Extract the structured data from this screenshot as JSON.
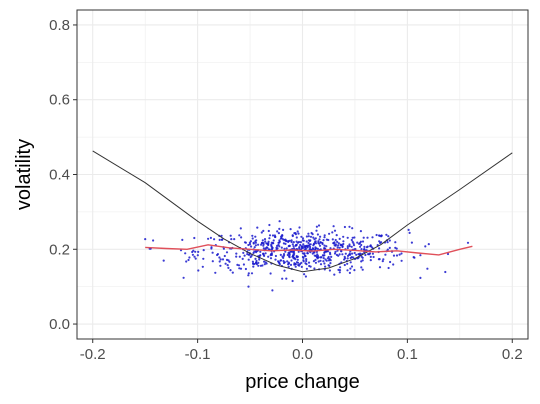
{
  "chart_data": {
    "type": "scatter",
    "title": "",
    "xlabel": "price change",
    "ylabel": "volatility",
    "xlim": [
      -0.215,
      0.215
    ],
    "ylim": [
      -0.04,
      0.84
    ],
    "x_ticks": [
      -0.2,
      -0.1,
      0.0,
      0.1,
      0.2
    ],
    "x_tick_labels": [
      "-0.2",
      "-0.1",
      "0.0",
      "0.1",
      "0.2"
    ],
    "y_ticks": [
      0.0,
      0.2,
      0.4,
      0.6,
      0.8
    ],
    "y_tick_labels": [
      "0.0",
      "0.2",
      "0.4",
      "0.6",
      "0.8"
    ],
    "grid": true,
    "background": "#ffffff",
    "panel_border_color": "#333333",
    "gridline_color": "#ebebeb",
    "series": [
      {
        "kind": "line",
        "color": "#333333",
        "x": [
          -0.2,
          -0.15,
          -0.1,
          -0.075,
          -0.05,
          -0.025,
          0.0,
          0.025,
          0.05,
          0.075,
          0.1,
          0.15,
          0.2
        ],
        "y": [
          0.463,
          0.378,
          0.275,
          0.228,
          0.189,
          0.158,
          0.14,
          0.15,
          0.175,
          0.213,
          0.265,
          0.36,
          0.458
        ]
      },
      {
        "kind": "line",
        "color": "#e0505a",
        "x": [
          -0.15,
          -0.13,
          -0.11,
          -0.09,
          -0.07,
          -0.05,
          -0.03,
          -0.01,
          0.01,
          0.03,
          0.05,
          0.07,
          0.09,
          0.11,
          0.13,
          0.15,
          0.162
        ],
        "y": [
          0.205,
          0.202,
          0.2,
          0.212,
          0.204,
          0.2,
          0.196,
          0.198,
          0.195,
          0.2,
          0.197,
          0.193,
          0.196,
          0.19,
          0.185,
          0.2,
          0.208
        ]
      },
      {
        "kind": "scatter",
        "color": "#1a1acc",
        "n_points": 700,
        "x_mean": 0.0,
        "x_sd": 0.05,
        "y_mean": 0.195,
        "y_sd": 0.028,
        "x_range": [
          -0.15,
          0.175
        ],
        "y_range": [
          0.09,
          0.275
        ]
      }
    ]
  }
}
